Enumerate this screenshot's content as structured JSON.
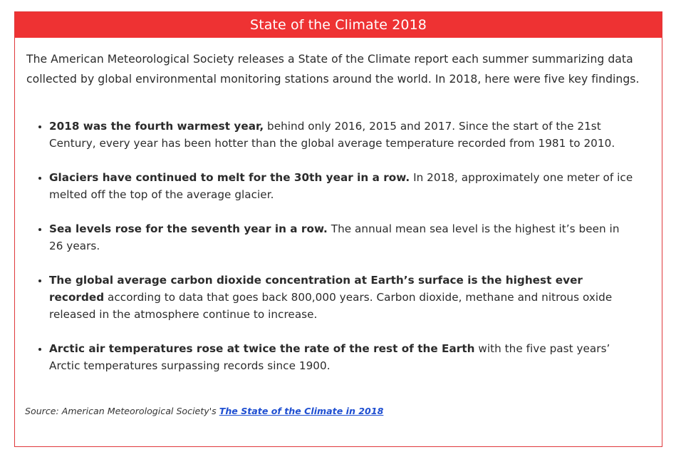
{
  "header": {
    "title": "State of the Climate 2018"
  },
  "intro": "The American Meteorological Society releases a State of the Climate report each summer summarizing data collected by global environmental monitoring stations around the world. In 2018, here were five key findings.",
  "findings": [
    {
      "bold": "2018 was the fourth warmest year,",
      "rest": " behind only 2016, 2015 and 2017. Since the start of the 21st Century, every year has been hotter than the global average temperature recorded from 1981 to 2010."
    },
    {
      "bold": "Glaciers have continued to melt for the 30th year in a row.",
      "rest": " In 2018, approximately one meter of ice melted off the top of the average glacier."
    },
    {
      "bold": "Sea levels rose for the seventh year in a row.",
      "rest": " The annual mean sea level is the highest it’s been in 26 years."
    },
    {
      "bold": "The global average carbon dioxide concentration at Earth’s surface is the highest ever recorded",
      "rest": " according to data that goes back 800,000 years. Carbon dioxide, methane and nitrous oxide released in the atmosphere continue to increase."
    },
    {
      "bold": "Arctic air temperatures rose at twice the rate of the rest of the Earth",
      "rest": " with the five past years’ Arctic temperatures surpassing records since 1900."
    }
  ],
  "source": {
    "prefix": "Source: American Meteorological Society's ",
    "link_text": "The State of the Climate in 2018"
  },
  "colors": {
    "header_bg": "#ee3233",
    "link": "#1f4fd1"
  }
}
